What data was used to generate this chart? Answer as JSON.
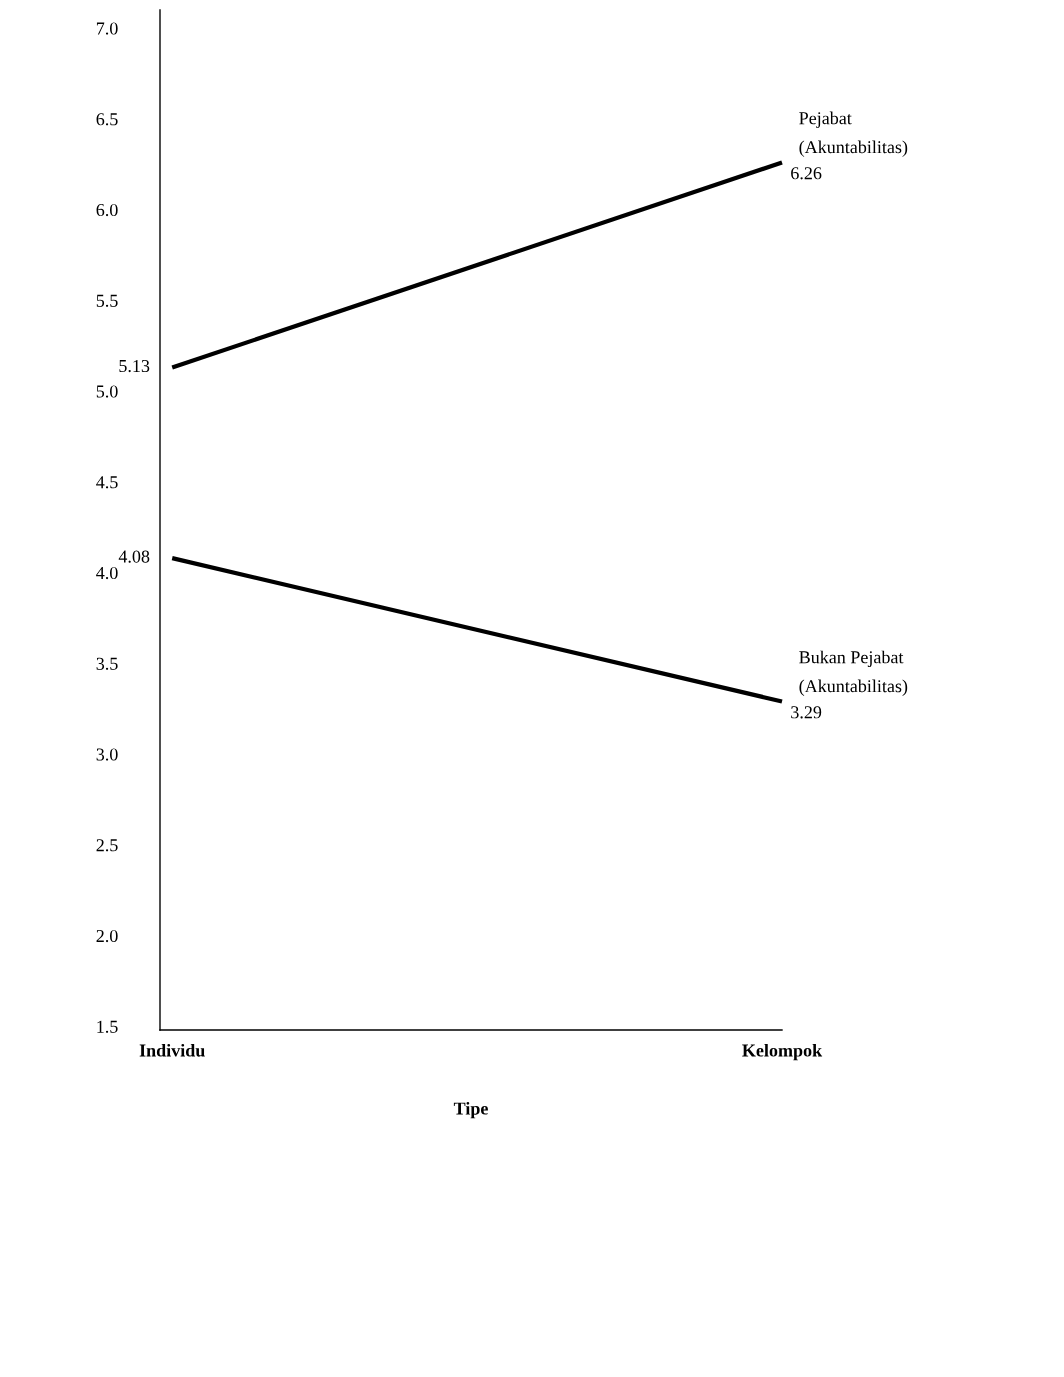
{
  "chart_data": {
    "type": "line",
    "xlabel": "Tipe",
    "categories": [
      "Individu",
      "Kelompok"
    ],
    "ylim": [
      1.48,
      7.1
    ],
    "yticks": [
      {
        "value": 1.5,
        "label": "1.5"
      },
      {
        "value": 2.0,
        "label": "2.0"
      },
      {
        "value": 2.5,
        "label": "2.5"
      },
      {
        "value": 3.0,
        "label": "3.0"
      },
      {
        "value": 3.5,
        "label": "3.5"
      },
      {
        "value": 4.0,
        "label": "4.0"
      },
      {
        "value": 4.5,
        "label": "4.5"
      },
      {
        "value": 5.0,
        "label": "5.0"
      },
      {
        "value": 5.5,
        "label": "5.5"
      },
      {
        "value": 6.0,
        "label": "6.0"
      },
      {
        "value": 6.5,
        "label": "6.5"
      },
      {
        "value": 7.0,
        "label": "7.0"
      }
    ],
    "grid": false,
    "legend": false,
    "marker": "none",
    "line_style": "solid",
    "series": [
      {
        "name": "Pejabat\n(Akuntabilitas)",
        "color": "#000000",
        "values": [
          5.13,
          6.26
        ],
        "value_labels": [
          "5.13",
          "6.26"
        ]
      },
      {
        "name": "Bukan Pejabat\n(Akuntabilitas)",
        "color": "#000000",
        "values": [
          4.08,
          3.29
        ],
        "value_labels": [
          "4.08",
          "3.29"
        ]
      }
    ]
  }
}
